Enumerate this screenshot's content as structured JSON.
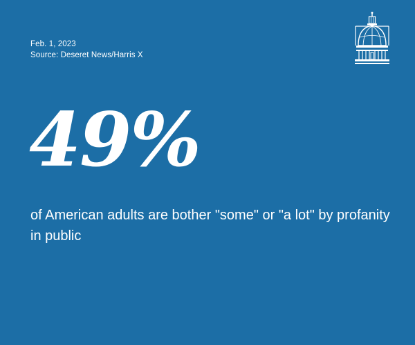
{
  "meta": {
    "date": "Feb. 1, 2023",
    "source": "Source: Deseret News/Harris X"
  },
  "stat": {
    "value": "49%",
    "caption": "of American adults are bother \"some\" or \"a lot\" by profanity in public"
  },
  "logo": {
    "icon": "capitol-dome-icon"
  },
  "colors": {
    "background": "#1c6ea6",
    "text": "#ffffff"
  }
}
